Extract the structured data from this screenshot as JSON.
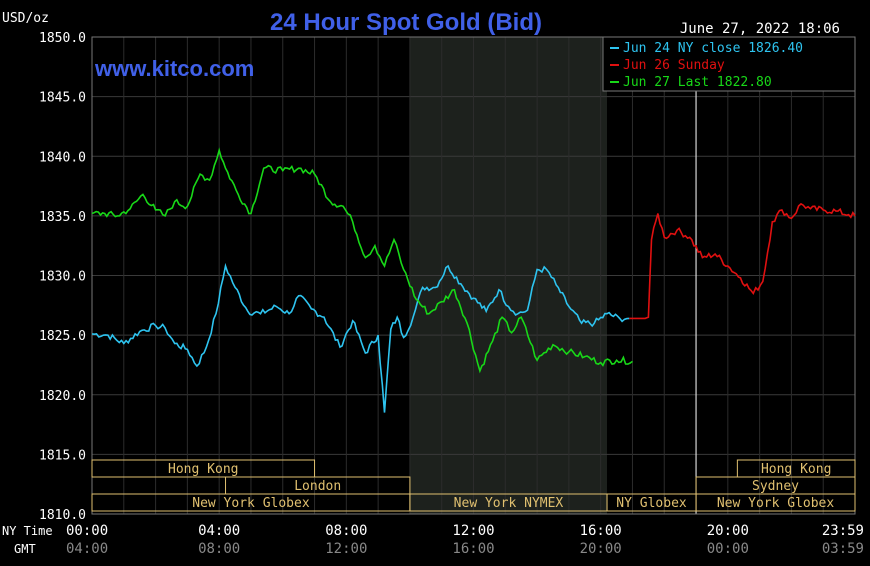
{
  "chart_data": {
    "type": "line",
    "title": "24 Hour Spot Gold (Bid)",
    "unit_label": "USD/oz",
    "watermark": "www.kitco.com",
    "timestamp": "June 27, 2022 18:06",
    "ylim": [
      1810,
      1850
    ],
    "y_ticks": [
      "1850.0",
      "1845.0",
      "1840.0",
      "1835.0",
      "1830.0",
      "1825.0",
      "1820.0",
      "1815.0",
      "1810.0"
    ],
    "x_axis": {
      "ny_label": "NY Time",
      "gmt_label": "GMT",
      "ny_ticks": [
        "00:00",
        "04:00",
        "08:00",
        "12:00",
        "16:00",
        "20:00",
        "23:59"
      ],
      "gmt_ticks": [
        "04:00",
        "08:00",
        "12:00",
        "16:00",
        "20:00",
        "00:00",
        "03:59"
      ]
    },
    "legend": [
      {
        "text": "Jun 24 NY close 1826.40",
        "color": "#2ec4f0"
      },
      {
        "text": "Jun 26 Sunday",
        "color": "#e01010"
      },
      {
        "text": "Jun 27 Last 1822.80",
        "color": "#18d818"
      }
    ],
    "series": [
      {
        "color": "#2ec4f0",
        "x": [
          0,
          0.5,
          1.0,
          1.5,
          2.0,
          2.3,
          2.6,
          3.0,
          3.3,
          3.6,
          3.9,
          4.2,
          4.5,
          4.9,
          5.3,
          5.8,
          6.2,
          6.5,
          6.9,
          7.3,
          7.8,
          8.2,
          8.6,
          9.0,
          9.2,
          9.4,
          9.6,
          9.8,
          10.1,
          10.4,
          10.8,
          11.2,
          11.6,
          12.0,
          12.4,
          12.8,
          13.1,
          13.4,
          13.7,
          14.0,
          14.3,
          14.6,
          15.0,
          15.4,
          15.8,
          16.2,
          16.6,
          16.9
        ],
        "y": [
          1825.1,
          1825.0,
          1824.3,
          1825.3,
          1825.8,
          1825.6,
          1824.3,
          1823.8,
          1822.4,
          1824.0,
          1826.8,
          1830.8,
          1829.0,
          1827.0,
          1826.8,
          1827.4,
          1826.8,
          1828.3,
          1827.2,
          1826.5,
          1824.0,
          1826.2,
          1823.5,
          1825.0,
          1818.5,
          1825.5,
          1826.5,
          1824.8,
          1826.5,
          1829.0,
          1829.0,
          1830.8,
          1829.3,
          1828.1,
          1827.0,
          1828.8,
          1827.4,
          1826.8,
          1827.1,
          1830.5,
          1830.5,
          1829.2,
          1827.4,
          1826.0,
          1826.0,
          1826.8,
          1826.4,
          1826.4
        ]
      },
      {
        "color": "#e01010",
        "x": [
          16.9,
          17.4,
          17.5,
          17.6,
          17.8,
          18.0,
          18.4,
          18.8,
          19.2,
          19.6,
          20.0,
          20.4,
          20.8,
          21.1,
          21.4,
          21.7,
          22.0,
          22.3,
          22.6,
          23.0,
          23.4,
          23.8,
          24.0
        ],
        "y": [
          1826.4,
          1826.4,
          1826.5,
          1833.0,
          1835.2,
          1833.2,
          1833.8,
          1833.2,
          1831.5,
          1831.8,
          1830.8,
          1829.8,
          1828.5,
          1829.5,
          1834.5,
          1835.5,
          1834.8,
          1836.0,
          1835.6,
          1835.5,
          1835.4,
          1835.1,
          1835.0
        ]
      },
      {
        "color": "#18d818",
        "x": [
          0,
          0.4,
          0.8,
          1.2,
          1.6,
          2.0,
          2.3,
          2.6,
          3.0,
          3.4,
          3.7,
          4.0,
          4.2,
          4.6,
          5.0,
          5.4,
          6.0,
          6.5,
          7.0,
          7.5,
          7.9,
          8.2,
          8.6,
          8.9,
          9.2,
          9.5,
          9.8,
          10.2,
          10.6,
          11.0,
          11.4,
          11.8,
          12.2,
          12.6,
          12.9,
          13.2,
          13.5,
          14.0,
          14.5,
          15.0,
          15.5,
          16.0,
          16.5,
          17.0
        ],
        "y": [
          1835.2,
          1835.2,
          1835.0,
          1835.6,
          1836.8,
          1835.5,
          1835.0,
          1836.2,
          1835.8,
          1838.5,
          1838.0,
          1840.5,
          1839.0,
          1836.8,
          1835.2,
          1839.0,
          1838.8,
          1839.0,
          1838.5,
          1836.2,
          1835.8,
          1834.5,
          1831.5,
          1832.5,
          1830.8,
          1833.0,
          1830.5,
          1828.0,
          1826.8,
          1827.8,
          1828.8,
          1826.0,
          1822.0,
          1824.5,
          1826.5,
          1825.2,
          1826.5,
          1822.9,
          1824.2,
          1823.6,
          1823.2,
          1822.7,
          1822.9,
          1822.8
        ]
      }
    ],
    "sessions": {
      "rows": [
        [
          {
            "label": "Hong Kong",
            "from": 0,
            "to": 7.0
          },
          {
            "label": "Hong Kong",
            "from": 20.3,
            "to": 24.0
          }
        ],
        [
          {
            "label": "London",
            "from": 4.2,
            "to": 10.0
          },
          {
            "label": "Sydney",
            "from": 19.0,
            "to": 24.0
          }
        ],
        [
          {
            "label": "New York Globex",
            "from": 0,
            "to": 10.0
          },
          {
            "label": "New York NYMEX",
            "from": 10.0,
            "to": 16.2
          },
          {
            "label": "NY Globex",
            "from": 16.2,
            "to": 19.0
          },
          {
            "label": "New York Globex",
            "from": 19.0,
            "to": 24.0
          }
        ]
      ]
    },
    "shaded_region": [
      10.0,
      16.2
    ],
    "weekend_gap_at": 19.0,
    "x_range": [
      0,
      24
    ],
    "grid": true
  }
}
